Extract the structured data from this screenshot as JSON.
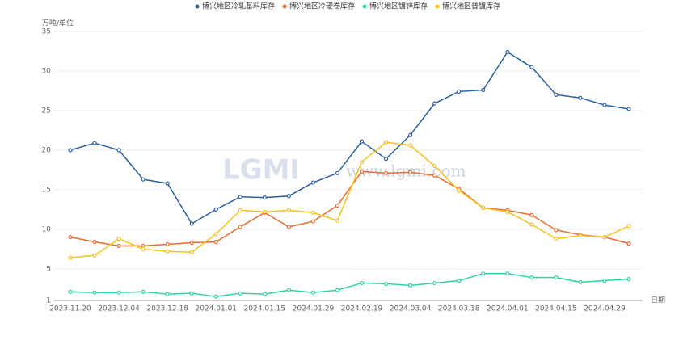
{
  "chart_data": {
    "type": "line",
    "y_label": "万吨/单位",
    "x_label": "日期",
    "watermark": [
      "LGMI",
      "www.lgmi.com"
    ],
    "categories": [
      "2023.11.20",
      null,
      "2023.12.04",
      null,
      "2023.12.18",
      null,
      "2024.01.01",
      null,
      "2024.01.15",
      null,
      "2024.01.29",
      null,
      "2024.02.19",
      null,
      "2024.03.04",
      null,
      "2024.03.18",
      null,
      "2024.04.01",
      null,
      "2024.04.15",
      null,
      "2024.04.29",
      null
    ],
    "series": [
      {
        "name": "博兴地区冷轧基料库存",
        "color": "#2a5fa0",
        "values": [
          20.0,
          20.9,
          20.0,
          16.3,
          15.8,
          10.7,
          12.5,
          14.1,
          14.0,
          14.2,
          15.9,
          17.1,
          21.1,
          18.9,
          21.9,
          25.9,
          27.4,
          27.6,
          32.4,
          30.5,
          27.0,
          26.6,
          25.7,
          25.2
        ]
      },
      {
        "name": "博兴地区冷硬卷库存",
        "color": "#f06a2c",
        "values": [
          9.0,
          8.4,
          7.9,
          7.9,
          8.1,
          8.3,
          8.4,
          10.3,
          12.1,
          10.3,
          11.0,
          13.0,
          17.3,
          17.1,
          17.2,
          16.8,
          15.1,
          12.7,
          12.4,
          11.8,
          9.9,
          9.3,
          9.0,
          8.2
        ]
      },
      {
        "name": "博兴地区镀锌库存",
        "color": "#2ed3a6",
        "values": [
          2.1,
          2.0,
          2.0,
          2.1,
          1.8,
          1.9,
          1.5,
          1.9,
          1.8,
          2.3,
          2.0,
          2.3,
          3.2,
          3.1,
          2.9,
          3.2,
          3.5,
          4.4,
          4.4,
          3.9,
          3.9,
          3.3,
          3.5,
          3.7
        ]
      },
      {
        "name": "博兴地区普镀库存",
        "color": "#f7c21a",
        "values": [
          6.4,
          6.7,
          8.8,
          7.5,
          7.2,
          7.1,
          9.4,
          12.4,
          12.2,
          12.4,
          12.1,
          11.1,
          18.5,
          21.0,
          20.6,
          18.0,
          14.9,
          12.7,
          12.2,
          10.6,
          8.8,
          9.2,
          9.0,
          10.4
        ]
      }
    ],
    "ylim": [
      1,
      35
    ],
    "yticks": [
      1,
      5,
      10,
      15,
      20,
      25,
      30,
      35
    ],
    "grid": true,
    "legend": "top"
  }
}
